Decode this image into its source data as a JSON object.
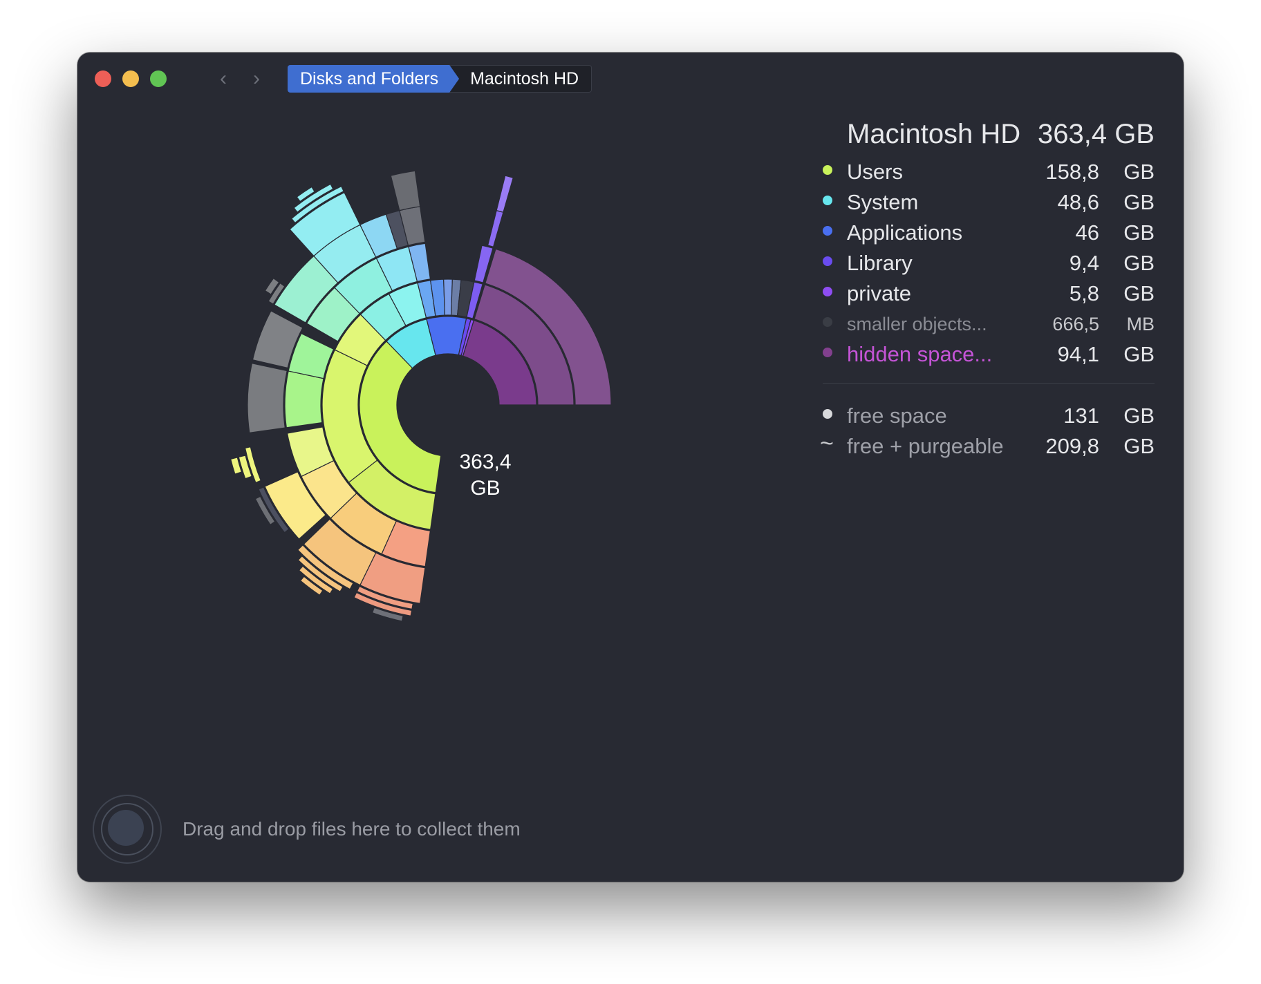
{
  "window": {
    "nav": {
      "back_icon": "chevron-left-icon",
      "forward_icon": "chevron-right-icon"
    },
    "breadcrumb": [
      "Disks and Folders",
      "Macintosh HD"
    ]
  },
  "sunburst": {
    "center_value": "363,4",
    "center_unit": "GB"
  },
  "panel": {
    "title": "Macintosh HD",
    "total": "363,4 GB",
    "items": [
      {
        "label": "Users",
        "value": "158,8",
        "unit": "GB",
        "color": "#c9f25b"
      },
      {
        "label": "System",
        "value": "48,6",
        "unit": "GB",
        "color": "#67e6ee"
      },
      {
        "label": "Applications",
        "value": "46",
        "unit": "GB",
        "color": "#4a6ff0"
      },
      {
        "label": "Library",
        "value": "9,4",
        "unit": "GB",
        "color": "#6a4cf0"
      },
      {
        "label": "private",
        "value": "5,8",
        "unit": "GB",
        "color": "#8e4df2"
      },
      {
        "label": "smaller objects...",
        "value": "666,5",
        "unit": "MB",
        "color": "#3a3d45"
      },
      {
        "label": "hidden space...",
        "value": "94,1",
        "unit": "GB",
        "color": "#82408e"
      }
    ],
    "free": [
      {
        "label": "free space",
        "value": "131",
        "unit": "GB",
        "color": "#d8d9dc"
      },
      {
        "label": "free + purgeable",
        "value": "209,8",
        "unit": "GB",
        "symbol": "~"
      }
    ]
  },
  "drop_zone": {
    "text": "Drag and drop files here to collect them"
  }
}
